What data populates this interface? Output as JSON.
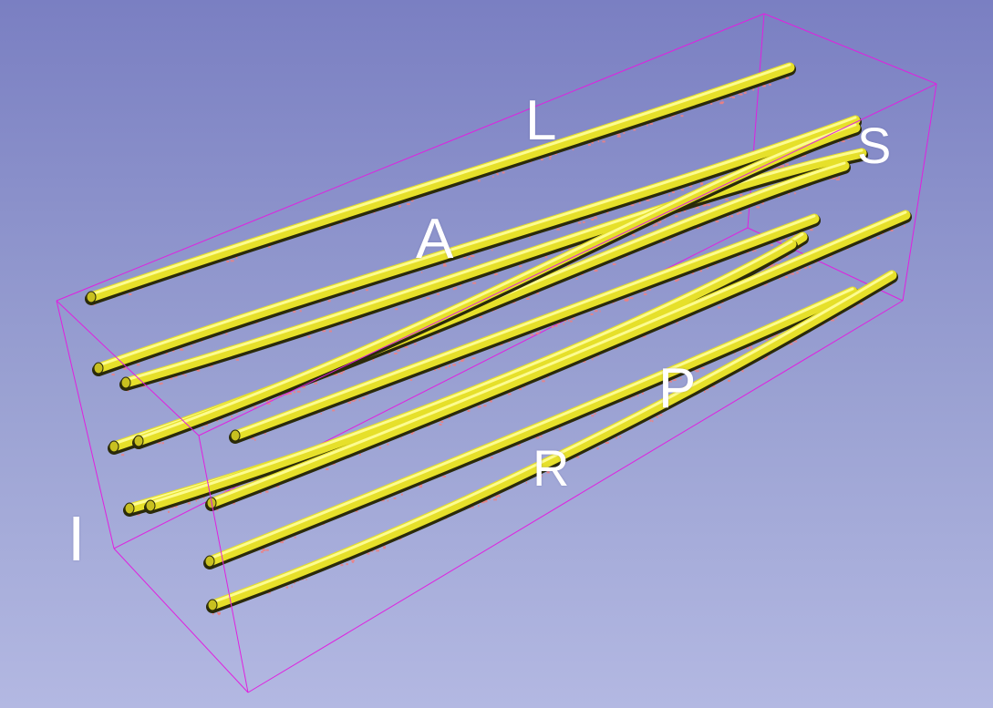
{
  "orientation_labels": {
    "left": "L",
    "anterior": "A",
    "superior": "S",
    "posterior": "P",
    "right": "R",
    "inferior": "I"
  },
  "colors": {
    "background_top": "#7a7fc2",
    "background_bottom": "#b3b8e2",
    "bounding_box": "#e020e0",
    "tube": "#e6e02a",
    "tube_shadow": "#2a2a0a",
    "tube_highlight": "#ffff9a",
    "point_cloud": "#f08080"
  },
  "scene": {
    "tube_count": 11,
    "bounding_box_visible": true
  }
}
